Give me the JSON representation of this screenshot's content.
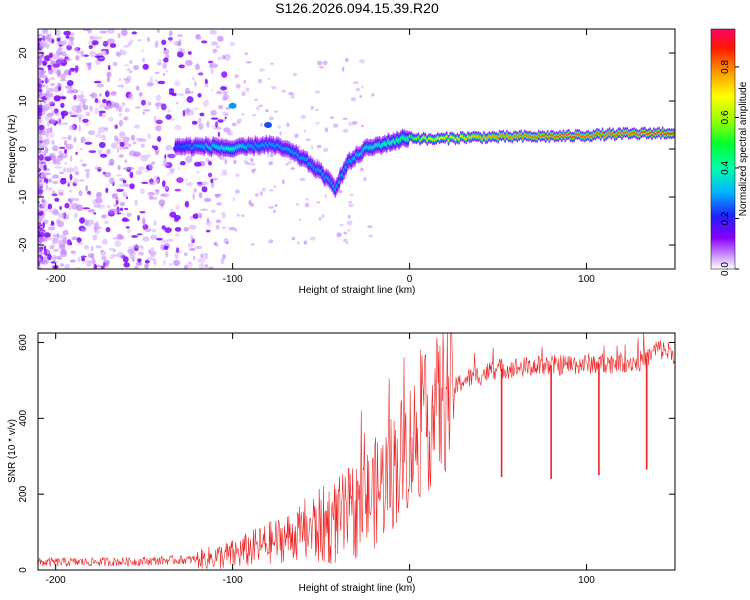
{
  "title": "S126.2026.094.15.39.R20",
  "chart_data": [
    {
      "type": "heatmap",
      "name": "spectrogram",
      "xlabel": "Height of straight line (km)",
      "ylabel": "Frequency (Hz)",
      "xlim": [
        -210,
        150
      ],
      "ylim": [
        -25,
        25
      ],
      "xticks": [
        -200,
        -100,
        0,
        100
      ],
      "yticks": [
        -20,
        -10,
        0,
        10,
        20
      ],
      "colorbar": {
        "label": "Normalized spectral amplitude",
        "range": [
          0,
          0.95
        ],
        "ticks": [
          0.0,
          0.2,
          0.4,
          0.6,
          0.8
        ],
        "stops": [
          "#d8b4ff",
          "#7a00ff",
          "#1f1fff",
          "#00c8ff",
          "#00ff4d",
          "#c8ff00",
          "#ffff00",
          "#ff9900",
          "#ff0000",
          "#ff0066"
        ]
      },
      "ridge": {
        "x": [
          -130,
          -110,
          -100,
          -90,
          -80,
          -70,
          -60,
          -50,
          -42,
          -35,
          -25,
          -15,
          -5,
          0,
          10,
          30,
          50,
          70,
          90,
          110,
          130,
          150
        ],
        "freq": [
          0.5,
          0.5,
          0,
          0.5,
          1,
          0,
          -2,
          -5,
          -8,
          -3,
          0,
          1,
          2,
          2.5,
          2,
          2.4,
          2.5,
          2.6,
          2.7,
          3,
          3.2,
          3.4
        ],
        "amplitude": [
          0.25,
          0.35,
          0.4,
          0.3,
          0.3,
          0.3,
          0.3,
          0.3,
          0.3,
          0.3,
          0.35,
          0.4,
          0.45,
          0.5,
          0.7,
          0.75,
          0.82,
          0.85,
          0.88,
          0.85,
          0.88,
          0.9
        ]
      },
      "features": [
        {
          "x": -100,
          "freq": 9,
          "amplitude": 0.3
        },
        {
          "x": -80,
          "freq": 5,
          "amplitude": 0.25
        }
      ]
    },
    {
      "type": "line",
      "name": "snr",
      "xlabel": "Height of straight line (km)",
      "ylabel": "SNR (10 * v/v)",
      "xlim": [
        -210,
        150
      ],
      "ylim": [
        0,
        625
      ],
      "xticks": [
        -200,
        -100,
        0,
        100
      ],
      "yticks": [
        0,
        200,
        400,
        600
      ],
      "color": "#ee2222",
      "trend": {
        "x": [
          -210,
          -160,
          -120,
          -100,
          -80,
          -60,
          -40,
          -30,
          -20,
          -10,
          0,
          10,
          20,
          30,
          50,
          80,
          110,
          130,
          135,
          140,
          150
        ],
        "y": [
          20,
          22,
          28,
          40,
          70,
          100,
          130,
          160,
          200,
          260,
          330,
          390,
          450,
          500,
          530,
          540,
          545,
          550,
          560,
          585,
          570
        ]
      },
      "dropouts": [
        {
          "x": 52,
          "y": 245
        },
        {
          "x": 80,
          "y": 240
        },
        {
          "x": 107,
          "y": 250
        },
        {
          "x": 134,
          "y": 265
        }
      ]
    }
  ]
}
